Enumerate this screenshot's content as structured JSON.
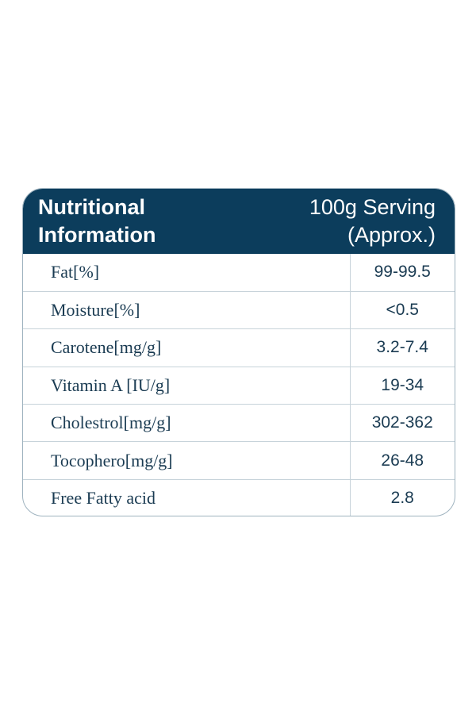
{
  "header": {
    "title_line1": "Nutritional",
    "title_line2": "Information",
    "serving_line1": "100g Serving",
    "serving_line2": "(Approx.)"
  },
  "rows": [
    {
      "name": "Fat[%]",
      "value": "99-99.5"
    },
    {
      "name": "Moisture[%]",
      "value": "<0.5"
    },
    {
      "name": "Carotene[mg/g]",
      "value": "3.2-7.4"
    },
    {
      "name": "Vitamin A [IU/g]",
      "value": "19-34"
    },
    {
      "name": "Cholestrol[mg/g]",
      "value": "302-362"
    },
    {
      "name": "Tocophero[mg/g]",
      "value": "26-48"
    },
    {
      "name": "Free Fatty acid",
      "value": "2.8"
    }
  ],
  "colors": {
    "header_bg": "#0c3d5c",
    "header_text": "#ffffff",
    "body_text": "#1a3b52",
    "border": "#c7d3da"
  }
}
